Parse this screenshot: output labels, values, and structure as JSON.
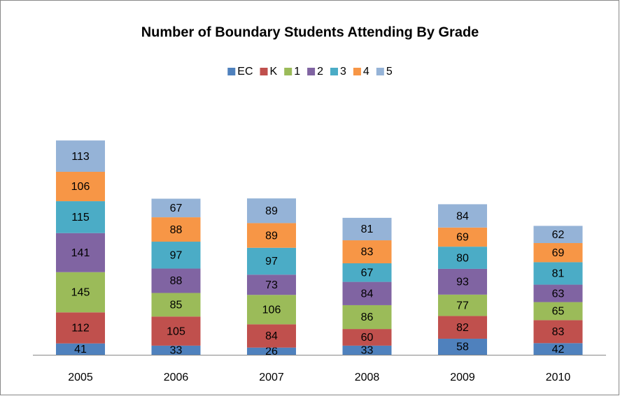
{
  "chart_data": {
    "type": "stacked_bar",
    "title": "Number of Boundary Students Attending By Grade",
    "categories": [
      "2005",
      "2006",
      "2007",
      "2008",
      "2009",
      "2010"
    ],
    "series": [
      {
        "name": "EC",
        "color": "#4f81bd",
        "values": [
          41,
          33,
          26,
          33,
          58,
          42
        ]
      },
      {
        "name": "K",
        "color": "#c0504d",
        "values": [
          112,
          105,
          84,
          60,
          82,
          83
        ]
      },
      {
        "name": "1",
        "color": "#9bbb59",
        "values": [
          145,
          85,
          106,
          86,
          77,
          65
        ]
      },
      {
        "name": "2",
        "color": "#8064a2",
        "values": [
          141,
          88,
          73,
          84,
          93,
          63
        ]
      },
      {
        "name": "3",
        "color": "#4bacc6",
        "values": [
          115,
          97,
          97,
          67,
          80,
          81
        ]
      },
      {
        "name": "4",
        "color": "#f79646",
        "values": [
          106,
          88,
          89,
          83,
          69,
          69
        ]
      },
      {
        "name": "5",
        "color": "#95b3d7",
        "values": [
          113,
          67,
          89,
          81,
          84,
          62
        ]
      }
    ],
    "legend": "top"
  }
}
